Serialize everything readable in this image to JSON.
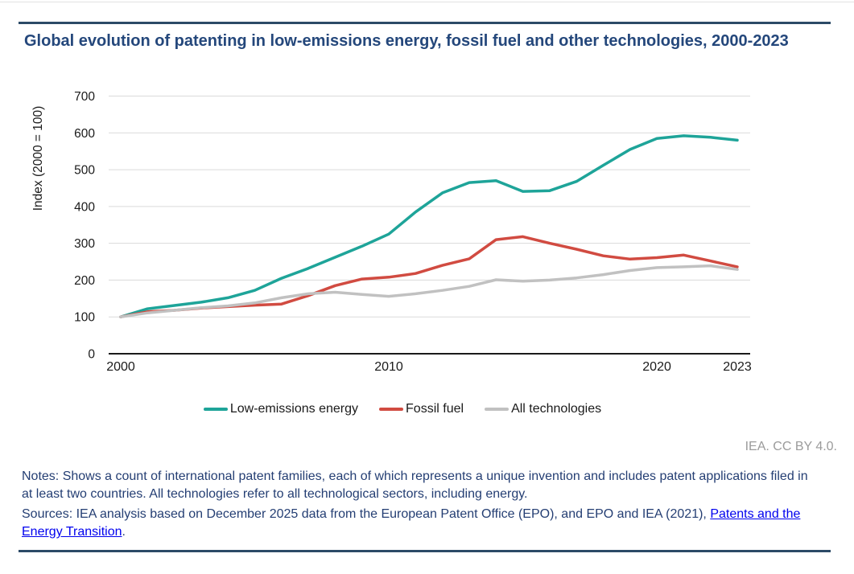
{
  "page": {
    "title": "Global evolution of patenting in low-emissions energy, fossil fuel and other technologies, 2000-2023",
    "attribution": "IEA. CC BY 4.0.",
    "notes": "Notes: Shows a count of international patent families, each of which represents a unique invention and includes patent applications filed in at least two countries. All technologies refer to all technological sectors, including energy.",
    "sources": {
      "prefix": "Sources: IEA analysis based on December 2025 data from the European Patent Office (EPO), and EPO and IEA (2021), ",
      "link_text": "Patents and the Energy Transition",
      "suffix": "."
    }
  },
  "colors": {
    "title": "#24477b",
    "body_text": "#243e73",
    "rule": "#2c4a67",
    "link": "#0000ee",
    "attribution": "#9b9b9b",
    "axis_text": "#1a1a1a",
    "grid": "#dadada",
    "axis_line": "#1a1a1a"
  },
  "chart_data": {
    "type": "line",
    "title": "Global evolution of patenting in low-emissions energy, fossil fuel and other technologies, 2000-2023",
    "xlabel": "",
    "ylabel": "Index (2000 = 100)",
    "ylim": [
      0,
      700
    ],
    "ytick_step": 100,
    "grid": "horizontal",
    "legend_position": "bottom",
    "x": [
      2000,
      2001,
      2002,
      2003,
      2004,
      2005,
      2006,
      2007,
      2008,
      2009,
      2010,
      2011,
      2012,
      2013,
      2014,
      2015,
      2016,
      2017,
      2018,
      2019,
      2020,
      2021,
      2022,
      2023
    ],
    "xticks": [
      2000,
      2010,
      2020,
      2023
    ],
    "series": [
      {
        "name": "Low-emissions energy",
        "color": "#1ea499",
        "values": [
          100,
          122,
          131,
          140,
          152,
          172,
          205,
          232,
          262,
          292,
          325,
          385,
          437,
          465,
          470,
          441,
          443,
          468,
          512,
          555,
          585,
          592,
          588,
          580
        ]
      },
      {
        "name": "Fossil fuel",
        "color": "#d14b41",
        "values": [
          100,
          114,
          118,
          124,
          128,
          132,
          135,
          158,
          185,
          203,
          208,
          218,
          240,
          258,
          310,
          318,
          300,
          284,
          266,
          257,
          261,
          268,
          252,
          236
        ]
      },
      {
        "name": "All technologies",
        "color": "#c1c1c1",
        "values": [
          100,
          111,
          118,
          125,
          130,
          138,
          152,
          163,
          167,
          161,
          156,
          163,
          172,
          183,
          201,
          197,
          200,
          206,
          215,
          226,
          234,
          236,
          239,
          229
        ]
      }
    ]
  }
}
